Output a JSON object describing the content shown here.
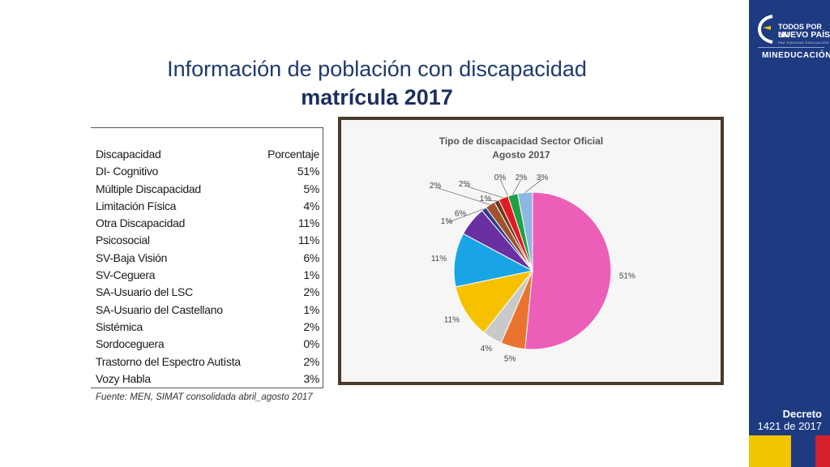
{
  "slide": {
    "title_line1": "Información de población con discapacidad",
    "title_line2": "matrícula  2017"
  },
  "table": {
    "header": [
      "Discapacidad",
      "Porcentaje"
    ],
    "rows": [
      [
        "DI- Cognitivo",
        "51%"
      ],
      [
        "Múltiple Discapacidad",
        "5%"
      ],
      [
        "Limitación Física",
        "4%"
      ],
      [
        "Otra Discapacidad",
        "11%"
      ],
      [
        "Psicosocial",
        "11%"
      ],
      [
        "SV-Baja Visión",
        "6%"
      ],
      [
        "SV-Ceguera",
        "1%"
      ],
      [
        "SA-Usuario del LSC",
        "2%"
      ],
      [
        "SA-Usuario del Castellano",
        "1%"
      ],
      [
        "Sistémica",
        "2%"
      ],
      [
        "Sordoceguera",
        "0%"
      ],
      [
        "Trastorno del Espectro Autísta",
        "2%"
      ],
      [
        "Vozy Habla",
        "3%"
      ]
    ],
    "source": "Fuente: MEN, SIMAT consolidada abril_agosto 2017"
  },
  "chart_data": {
    "type": "pie",
    "title": "Tipo de discapacidad  Sector Oficial",
    "subtitle": "Agosto 2017",
    "labels": [
      "DI- Cognitivo",
      "Múltiple Discapacidad",
      "Limitación Física",
      "Otra Discapacidad",
      "Psicosocial",
      "SV-Baja Visión",
      "SV-Ceguera",
      "SA-Usuario del LSC",
      "SA-Usuario del Castellano",
      "Sistémica",
      "Sordoceguera",
      "Trastorno del Espectro Autísta",
      "Vozy Habla"
    ],
    "values": [
      51,
      5,
      4,
      11,
      11,
      6,
      1,
      2,
      1,
      2,
      0,
      2,
      3
    ],
    "data_labels": [
      "51%",
      "5%",
      "4%",
      "11%",
      "11%",
      "6%",
      "1%",
      "2%",
      "1%",
      "2%",
      "0%",
      "2%",
      "3%"
    ],
    "colors": [
      "#ec5fb8",
      "#e8742f",
      "#c9c9c9",
      "#f6c200",
      "#19a4e6",
      "#6a2fa0",
      "#2e3a8c",
      "#a0522d",
      "#6b3a1f",
      "#e11b22",
      "#2f6b3a",
      "#1fa044",
      "#8db7e0"
    ],
    "legend": "none"
  },
  "sidebar": {
    "logo_line1": "TODOS POR UN",
    "logo_line2": "NUEVO PAÍS",
    "logo_sub": "PAZ  EQUIDAD  EDUCACIÓN",
    "brand": "MINEDUCACIÓN",
    "decree_line1": "Decreto",
    "decree_line2": "1421 de 2017"
  }
}
